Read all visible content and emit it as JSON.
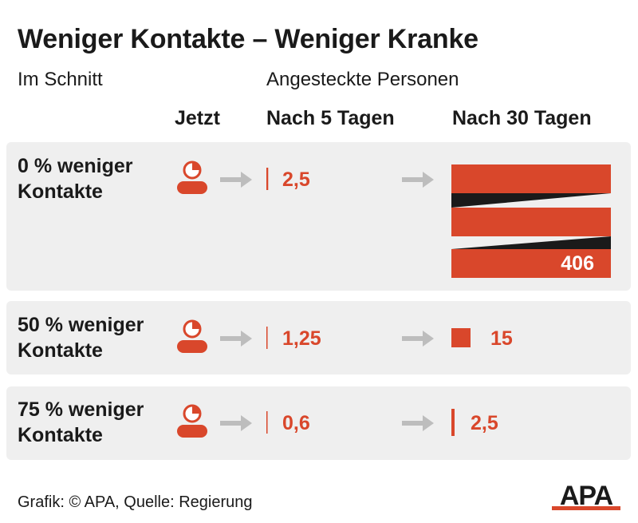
{
  "title": "Weniger Kontakte – Weniger Kranke",
  "subtitle_left": "Im Schnitt",
  "subtitle_right": "Angesteckte Personen",
  "columns": {
    "now": "Jetzt",
    "day5": "Nach 5 Tagen",
    "day30": "Nach 30 Tagen"
  },
  "footer": "Grafik: © APA, Quelle: Regierung",
  "logo": "APA",
  "colors": {
    "accent": "#d9472b",
    "panel": "#efefef",
    "arrow": "#bdbdbd",
    "dark": "#1a1a1a"
  },
  "icons": [
    "person-icon",
    "arrow-right-icon"
  ],
  "chart_data": {
    "type": "bar",
    "title": "Weniger Kontakte – Weniger Kranke",
    "categories": [
      "0 % weniger Kontakte",
      "50 % weniger Kontakte",
      "75 % weniger Kontakte"
    ],
    "series": [
      {
        "name": "Nach 5 Tagen",
        "values": [
          2.5,
          1.25,
          0.6
        ],
        "labels": [
          "2,5",
          "1,25",
          "0,6"
        ]
      },
      {
        "name": "Nach 30 Tagen",
        "values": [
          406,
          15,
          2.5
        ],
        "labels": [
          "406",
          "15",
          "2,5"
        ]
      }
    ]
  },
  "rows": [
    {
      "label_line1": "0 % weniger",
      "label_line2": "Kontakte",
      "day5_label": "2,5",
      "day30_label": "406"
    },
    {
      "label_line1": "50 % weniger",
      "label_line2": "Kontakte",
      "day5_label": "1,25",
      "day30_label": "15"
    },
    {
      "label_line1": "75 % weniger",
      "label_line2": "Kontakte",
      "day5_label": "0,6",
      "day30_label": "2,5"
    }
  ]
}
